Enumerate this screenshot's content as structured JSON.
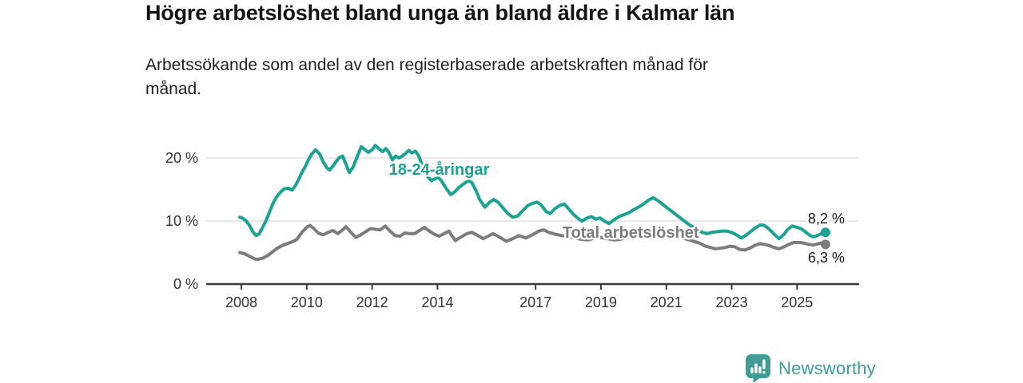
{
  "chart_data": {
    "type": "line",
    "title": "Högre arbetslöshet bland unga än bland äldre i Kalmar län",
    "subtitle_line1": "Arbetssökande som andel av den registerbaserade arbetskraften månad för",
    "subtitle_line2": "månad.",
    "grid": "horizontal",
    "colors": {
      "grid": "#d9d9d9",
      "axis": "#3a3a3a",
      "tick_label": "#333333",
      "end_label": "#1a1a1a"
    },
    "y_axis": {
      "min": 0,
      "max": 22.5,
      "ticks": [
        {
          "value": 0,
          "label": "0 %"
        },
        {
          "value": 10,
          "label": "10 %"
        },
        {
          "value": 20,
          "label": "20 %"
        }
      ]
    },
    "x_axis": {
      "start_year": 2007.95,
      "end_year": 2025.87,
      "ticks": [
        {
          "year": 2008,
          "label": "2008"
        },
        {
          "year": 2010,
          "label": "2010"
        },
        {
          "year": 2012,
          "label": "2012"
        },
        {
          "year": 2014,
          "label": "2014"
        },
        {
          "year": 2017,
          "label": "2017"
        },
        {
          "year": 2019,
          "label": "2019"
        },
        {
          "year": 2021,
          "label": "2021"
        },
        {
          "year": 2023,
          "label": "2023"
        },
        {
          "year": 2025,
          "label": "2025"
        }
      ]
    },
    "series": [
      {
        "name": "18-24-åringar",
        "color": "#1BA292",
        "end_label": "8,2 %",
        "end_value": 8.2,
        "end_label_position": "above",
        "label_at": {
          "year": 2014.05,
          "value": 18.2
        },
        "points": [
          [
            2007.95,
            10.6
          ],
          [
            2008.05,
            10.4
          ],
          [
            2008.15,
            10.0
          ],
          [
            2008.25,
            9.3
          ],
          [
            2008.35,
            8.3
          ],
          [
            2008.45,
            7.7
          ],
          [
            2008.55,
            8.0
          ],
          [
            2008.65,
            9.0
          ],
          [
            2008.75,
            10.0
          ],
          [
            2008.85,
            11.3
          ],
          [
            2008.95,
            12.6
          ],
          [
            2009.05,
            13.6
          ],
          [
            2009.15,
            14.3
          ],
          [
            2009.3,
            15.1
          ],
          [
            2009.45,
            15.2
          ],
          [
            2009.55,
            14.9
          ],
          [
            2009.65,
            15.6
          ],
          [
            2009.75,
            16.6
          ],
          [
            2009.85,
            17.7
          ],
          [
            2009.95,
            18.6
          ],
          [
            2010.05,
            19.7
          ],
          [
            2010.15,
            20.6
          ],
          [
            2010.27,
            21.3
          ],
          [
            2010.4,
            20.6
          ],
          [
            2010.5,
            19.4
          ],
          [
            2010.62,
            18.4
          ],
          [
            2010.7,
            18.1
          ],
          [
            2010.8,
            18.7
          ],
          [
            2010.9,
            19.4
          ],
          [
            2011.0,
            20.1
          ],
          [
            2011.1,
            20.3
          ],
          [
            2011.2,
            19.0
          ],
          [
            2011.3,
            17.7
          ],
          [
            2011.42,
            18.6
          ],
          [
            2011.55,
            20.3
          ],
          [
            2011.67,
            21.8
          ],
          [
            2011.78,
            21.3
          ],
          [
            2011.88,
            20.9
          ],
          [
            2012.0,
            21.3
          ],
          [
            2012.1,
            22.0
          ],
          [
            2012.2,
            21.5
          ],
          [
            2012.32,
            21.0
          ],
          [
            2012.42,
            21.5
          ],
          [
            2012.52,
            20.8
          ],
          [
            2012.62,
            19.7
          ],
          [
            2012.72,
            20.3
          ],
          [
            2012.82,
            20.0
          ],
          [
            2012.92,
            20.3
          ],
          [
            2013.02,
            20.7
          ],
          [
            2013.12,
            21.2
          ],
          [
            2013.22,
            20.8
          ],
          [
            2013.32,
            21.1
          ],
          [
            2013.42,
            20.4
          ],
          [
            2013.52,
            19.0
          ],
          [
            2013.62,
            17.7
          ],
          [
            2013.72,
            16.9
          ],
          [
            2013.82,
            16.4
          ],
          [
            2013.92,
            16.7
          ],
          [
            2014.02,
            16.9
          ],
          [
            2014.12,
            16.4
          ],
          [
            2014.25,
            15.3
          ],
          [
            2014.4,
            14.2
          ],
          [
            2014.52,
            14.6
          ],
          [
            2014.65,
            15.3
          ],
          [
            2014.8,
            15.9
          ],
          [
            2014.95,
            16.4
          ],
          [
            2015.05,
            16.1
          ],
          [
            2015.18,
            14.8
          ],
          [
            2015.3,
            13.3
          ],
          [
            2015.45,
            12.2
          ],
          [
            2015.6,
            13.0
          ],
          [
            2015.72,
            13.4
          ],
          [
            2015.85,
            13.0
          ],
          [
            2016.0,
            12.1
          ],
          [
            2016.15,
            11.2
          ],
          [
            2016.3,
            10.6
          ],
          [
            2016.45,
            10.8
          ],
          [
            2016.6,
            11.6
          ],
          [
            2016.75,
            12.4
          ],
          [
            2016.9,
            12.8
          ],
          [
            2017.05,
            13.0
          ],
          [
            2017.18,
            12.5
          ],
          [
            2017.32,
            11.5
          ],
          [
            2017.45,
            11.2
          ],
          [
            2017.6,
            12.0
          ],
          [
            2017.75,
            12.5
          ],
          [
            2017.88,
            12.7
          ],
          [
            2018.0,
            12.0
          ],
          [
            2018.15,
            11.1
          ],
          [
            2018.3,
            10.4
          ],
          [
            2018.42,
            10.0
          ],
          [
            2018.58,
            10.5
          ],
          [
            2018.7,
            10.7
          ],
          [
            2018.85,
            10.3
          ],
          [
            2018.97,
            10.5
          ],
          [
            2019.1,
            10.0
          ],
          [
            2019.25,
            9.6
          ],
          [
            2019.4,
            10.2
          ],
          [
            2019.55,
            10.7
          ],
          [
            2019.7,
            11.0
          ],
          [
            2019.85,
            11.3
          ],
          [
            2020.0,
            11.8
          ],
          [
            2020.15,
            12.2
          ],
          [
            2020.3,
            12.7
          ],
          [
            2020.45,
            13.3
          ],
          [
            2020.6,
            13.7
          ],
          [
            2020.75,
            13.2
          ],
          [
            2020.9,
            12.6
          ],
          [
            2021.05,
            12.0
          ],
          [
            2021.2,
            11.4
          ],
          [
            2021.35,
            10.8
          ],
          [
            2021.5,
            10.2
          ],
          [
            2021.65,
            9.6
          ],
          [
            2021.8,
            9.1
          ],
          [
            2021.95,
            8.6
          ],
          [
            2022.1,
            8.2
          ],
          [
            2022.25,
            8.0
          ],
          [
            2022.4,
            8.2
          ],
          [
            2022.55,
            8.3
          ],
          [
            2022.7,
            8.4
          ],
          [
            2022.85,
            8.4
          ],
          [
            2023.0,
            8.2
          ],
          [
            2023.15,
            7.8
          ],
          [
            2023.3,
            7.3
          ],
          [
            2023.45,
            7.8
          ],
          [
            2023.6,
            8.4
          ],
          [
            2023.75,
            9.0
          ],
          [
            2023.88,
            9.4
          ],
          [
            2024.0,
            9.3
          ],
          [
            2024.15,
            8.7
          ],
          [
            2024.3,
            7.9
          ],
          [
            2024.45,
            7.2
          ],
          [
            2024.6,
            7.9
          ],
          [
            2024.72,
            8.7
          ],
          [
            2024.85,
            9.2
          ],
          [
            2025.0,
            9.0
          ],
          [
            2025.12,
            8.8
          ],
          [
            2025.25,
            8.3
          ],
          [
            2025.4,
            7.7
          ],
          [
            2025.5,
            7.5
          ],
          [
            2025.62,
            7.7
          ],
          [
            2025.75,
            8.0
          ],
          [
            2025.87,
            8.2
          ]
        ]
      },
      {
        "name": "Total arbetslöshet",
        "color": "#7C7C7C",
        "end_label": "6,3 %",
        "end_value": 6.3,
        "end_label_position": "below",
        "label_at": {
          "year": 2019.91,
          "value": 8.2
        },
        "points": [
          [
            2007.95,
            5.0
          ],
          [
            2008.1,
            4.8
          ],
          [
            2008.25,
            4.4
          ],
          [
            2008.4,
            4.0
          ],
          [
            2008.5,
            3.9
          ],
          [
            2008.65,
            4.1
          ],
          [
            2008.8,
            4.5
          ],
          [
            2008.95,
            5.1
          ],
          [
            2009.1,
            5.7
          ],
          [
            2009.25,
            6.1
          ],
          [
            2009.4,
            6.4
          ],
          [
            2009.55,
            6.7
          ],
          [
            2009.7,
            7.1
          ],
          [
            2009.85,
            8.2
          ],
          [
            2010.0,
            9.0
          ],
          [
            2010.1,
            9.3
          ],
          [
            2010.22,
            8.8
          ],
          [
            2010.35,
            8.1
          ],
          [
            2010.5,
            7.8
          ],
          [
            2010.65,
            8.2
          ],
          [
            2010.8,
            8.5
          ],
          [
            2010.95,
            8.0
          ],
          [
            2011.1,
            8.6
          ],
          [
            2011.2,
            9.1
          ],
          [
            2011.35,
            8.2
          ],
          [
            2011.5,
            7.4
          ],
          [
            2011.65,
            7.8
          ],
          [
            2011.8,
            8.3
          ],
          [
            2011.95,
            8.8
          ],
          [
            2012.1,
            8.7
          ],
          [
            2012.25,
            8.6
          ],
          [
            2012.4,
            9.2
          ],
          [
            2012.55,
            8.4
          ],
          [
            2012.7,
            7.7
          ],
          [
            2012.85,
            7.6
          ],
          [
            2013.0,
            8.1
          ],
          [
            2013.15,
            8.0
          ],
          [
            2013.3,
            8.0
          ],
          [
            2013.45,
            8.5
          ],
          [
            2013.6,
            9.0
          ],
          [
            2013.75,
            8.4
          ],
          [
            2013.9,
            7.9
          ],
          [
            2014.05,
            7.6
          ],
          [
            2014.2,
            8.0
          ],
          [
            2014.35,
            8.4
          ],
          [
            2014.45,
            7.6
          ],
          [
            2014.55,
            6.9
          ],
          [
            2014.7,
            7.4
          ],
          [
            2014.9,
            8.0
          ],
          [
            2015.05,
            8.2
          ],
          [
            2015.2,
            7.8
          ],
          [
            2015.4,
            7.2
          ],
          [
            2015.55,
            7.6
          ],
          [
            2015.7,
            8.0
          ],
          [
            2015.85,
            7.6
          ],
          [
            2016.1,
            6.8
          ],
          [
            2016.3,
            7.2
          ],
          [
            2016.5,
            7.7
          ],
          [
            2016.7,
            7.3
          ],
          [
            2016.9,
            7.8
          ],
          [
            2017.1,
            8.4
          ],
          [
            2017.25,
            8.6
          ],
          [
            2017.4,
            8.2
          ],
          [
            2017.6,
            7.9
          ],
          [
            2017.8,
            7.7
          ],
          [
            2018.0,
            7.5
          ],
          [
            2018.2,
            7.3
          ],
          [
            2018.4,
            7.1
          ],
          [
            2018.6,
            7.0
          ],
          [
            2018.8,
            7.3
          ],
          [
            2019.0,
            7.4
          ],
          [
            2019.2,
            7.2
          ],
          [
            2019.4,
            7.0
          ],
          [
            2019.6,
            7.1
          ],
          [
            2019.8,
            7.4
          ],
          [
            2020.0,
            7.7
          ],
          [
            2020.2,
            8.1
          ],
          [
            2020.4,
            8.4
          ],
          [
            2020.55,
            8.5
          ],
          [
            2020.7,
            8.3
          ],
          [
            2020.9,
            8.0
          ],
          [
            2021.1,
            7.8
          ],
          [
            2021.3,
            7.6
          ],
          [
            2021.5,
            7.3
          ],
          [
            2021.7,
            7.0
          ],
          [
            2021.9,
            6.7
          ],
          [
            2022.05,
            6.4
          ],
          [
            2022.2,
            6.0
          ],
          [
            2022.35,
            5.8
          ],
          [
            2022.5,
            5.6
          ],
          [
            2022.65,
            5.7
          ],
          [
            2022.8,
            5.8
          ],
          [
            2022.95,
            6.0
          ],
          [
            2023.1,
            5.9
          ],
          [
            2023.25,
            5.5
          ],
          [
            2023.4,
            5.4
          ],
          [
            2023.55,
            5.7
          ],
          [
            2023.7,
            6.1
          ],
          [
            2023.85,
            6.4
          ],
          [
            2024.0,
            6.3
          ],
          [
            2024.15,
            6.1
          ],
          [
            2024.3,
            5.8
          ],
          [
            2024.45,
            5.6
          ],
          [
            2024.6,
            5.9
          ],
          [
            2024.75,
            6.3
          ],
          [
            2024.9,
            6.6
          ],
          [
            2025.05,
            6.6
          ],
          [
            2025.2,
            6.5
          ],
          [
            2025.35,
            6.3
          ],
          [
            2025.5,
            6.2
          ],
          [
            2025.65,
            6.4
          ],
          [
            2025.75,
            6.5
          ],
          [
            2025.87,
            6.3
          ]
        ]
      }
    ]
  },
  "branding": {
    "name": "Newsworthy",
    "color": "#3F9D96"
  }
}
